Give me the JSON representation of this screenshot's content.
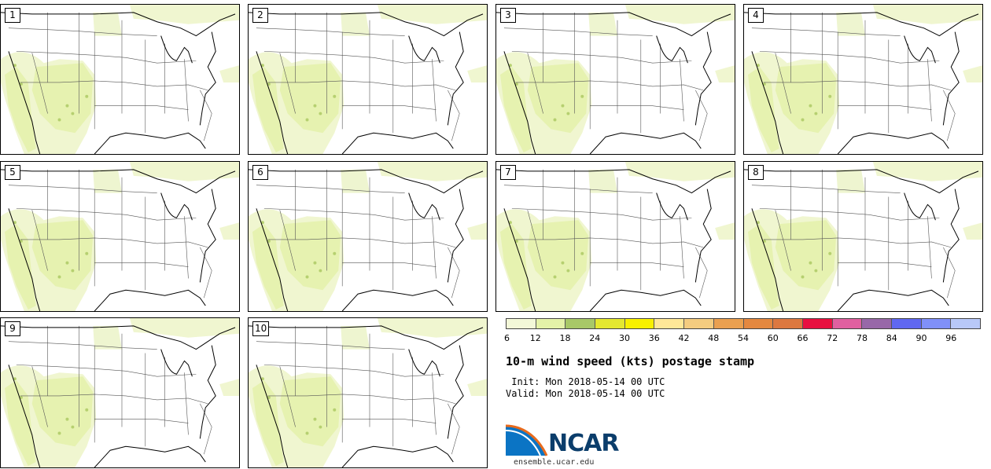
{
  "panels": [
    {
      "label": "1"
    },
    {
      "label": "2"
    },
    {
      "label": "3"
    },
    {
      "label": "4"
    },
    {
      "label": "5"
    },
    {
      "label": "6"
    },
    {
      "label": "7"
    },
    {
      "label": "8"
    },
    {
      "label": "9"
    },
    {
      "label": "10"
    }
  ],
  "colorbar": {
    "colors": [
      "#f3f8d8",
      "#e4f2a8",
      "#a8c868",
      "#e4e830",
      "#f8f000",
      "#ffe898",
      "#f4cc80",
      "#eaa050",
      "#e48840",
      "#dc7840",
      "#e81040",
      "#e060a0",
      "#9868a8",
      "#6068f0",
      "#8090f8",
      "#b8c8f8"
    ],
    "ticks": [
      "6",
      "12",
      "18",
      "24",
      "30",
      "36",
      "42",
      "48",
      "54",
      "60",
      "66",
      "72",
      "78",
      "84",
      "90",
      "96"
    ]
  },
  "title": "10-m wind speed (kts) postage stamp",
  "init_text": " Init: Mon 2018-05-14 00 UTC",
  "valid_text": "Valid: Mon 2018-05-14 00 UTC",
  "logo_text": "NCAR",
  "url": "ensemble.ucar.edu"
}
